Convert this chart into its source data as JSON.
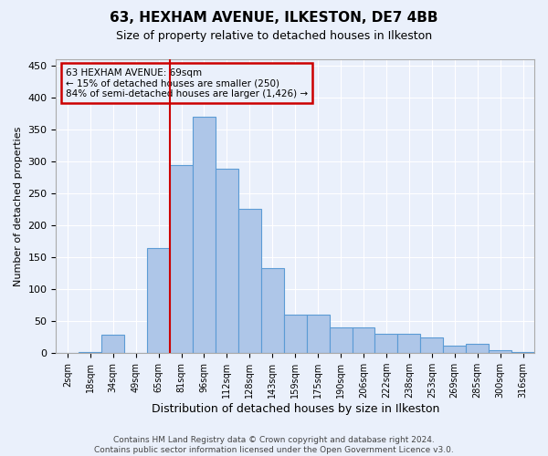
{
  "title1": "63, HEXHAM AVENUE, ILKESTON, DE7 4BB",
  "title2": "Size of property relative to detached houses in Ilkeston",
  "xlabel": "Distribution of detached houses by size in Ilkeston",
  "ylabel": "Number of detached properties",
  "footnote": "Contains HM Land Registry data © Crown copyright and database right 2024.\nContains public sector information licensed under the Open Government Licence v3.0.",
  "annotation_line1": "63 HEXHAM AVENUE: 69sqm",
  "annotation_line2": "← 15% of detached houses are smaller (250)",
  "annotation_line3": "84% of semi-detached houses are larger (1,426) →",
  "bar_values": [
    0,
    2,
    29,
    0,
    165,
    295,
    370,
    288,
    226,
    133,
    60,
    60,
    41,
    41,
    30,
    30,
    25,
    12,
    14,
    5,
    2
  ],
  "categories": [
    "2sqm",
    "18sqm",
    "34sqm",
    "49sqm",
    "65sqm",
    "81sqm",
    "96sqm",
    "112sqm",
    "128sqm",
    "143sqm",
    "159sqm",
    "175sqm",
    "190sqm",
    "206sqm",
    "222sqm",
    "238sqm",
    "253sqm",
    "269sqm",
    "285sqm",
    "300sqm",
    "316sqm"
  ],
  "bar_color": "#aec6e8",
  "bar_edge_color": "#5b9bd5",
  "vline_color": "#cc0000",
  "bg_color": "#eaf0fb",
  "grid_color": "#ffffff",
  "ylim": [
    0,
    460
  ],
  "yticks": [
    0,
    50,
    100,
    150,
    200,
    250,
    300,
    350,
    400,
    450
  ]
}
